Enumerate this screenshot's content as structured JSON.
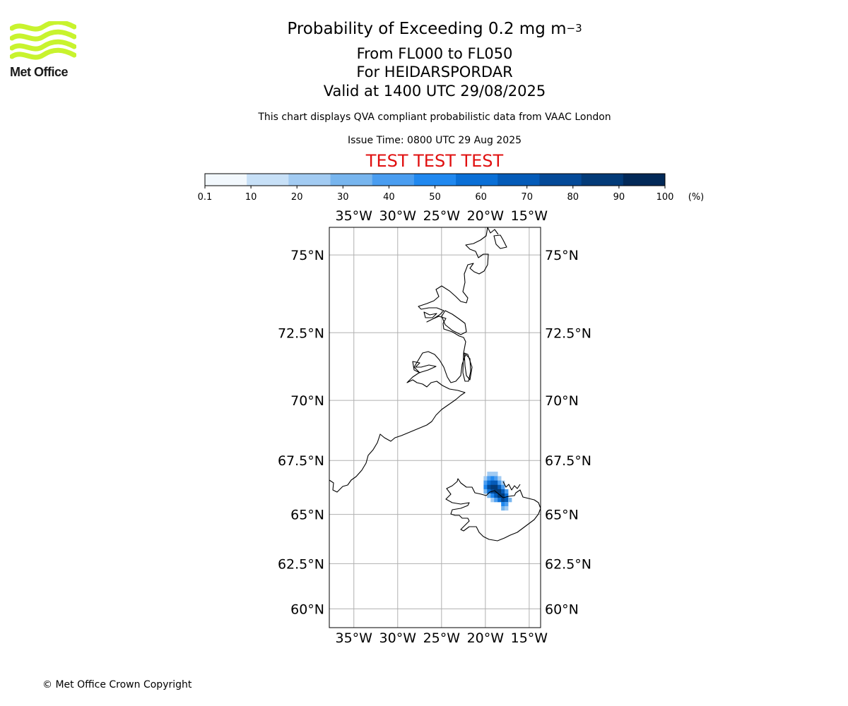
{
  "logo": {
    "text": "Met Office",
    "color": "#c8f32e",
    "text_color": "#1a1a1a"
  },
  "header": {
    "title_main": "Probability of Exceeding 0.2 mg m",
    "title_sup": "−3",
    "flight_levels": "From FL000 to FL050",
    "location": "For HEIDARSPORDAR",
    "valid": "Valid at 1400 UTC 29/08/2025",
    "note": "This chart displays QVA compliant probabilistic data from VAAC London",
    "issue": "Issue Time: 0800 UTC 29 Aug 2025",
    "test_banner": "TEST TEST TEST",
    "test_color": "#e01010"
  },
  "colorbar": {
    "ticks": [
      "0.1",
      "10",
      "20",
      "30",
      "40",
      "50",
      "60",
      "70",
      "80",
      "90",
      "100"
    ],
    "unit": "(%)",
    "colors": [
      "#f2f8fd",
      "#c7e0f7",
      "#a2cbf2",
      "#77b5ee",
      "#4a9df0",
      "#2088ef",
      "#0a6fd6",
      "#045bb8",
      "#044a98",
      "#033b78",
      "#022958"
    ]
  },
  "map": {
    "lon_labels": [
      "35°W",
      "30°W",
      "25°W",
      "20°W",
      "15°W"
    ],
    "lat_labels": [
      "75°N",
      "72.5°N",
      "70°N",
      "67.5°N",
      "65°N",
      "62.5°N",
      "60°N"
    ],
    "lon_values": [
      -35,
      -30,
      -25,
      -20,
      -15
    ],
    "lat_values": [
      75,
      72.5,
      70,
      67.5,
      65,
      62.5,
      60
    ],
    "grid_color": "#b0b0b0",
    "volcano": "HEIDARSPORDAR",
    "plume_cells": [
      {
        "lon": -19.6,
        "lat": 66.9,
        "p": 20
      },
      {
        "lon": -19.2,
        "lat": 66.9,
        "p": 20
      },
      {
        "lon": -18.8,
        "lat": 66.9,
        "p": 20
      },
      {
        "lon": -20.0,
        "lat": 66.7,
        "p": 20
      },
      {
        "lon": -19.6,
        "lat": 66.7,
        "p": 40
      },
      {
        "lon": -19.2,
        "lat": 66.7,
        "p": 50
      },
      {
        "lon": -18.8,
        "lat": 66.7,
        "p": 40
      },
      {
        "lon": -18.4,
        "lat": 66.7,
        "p": 20
      },
      {
        "lon": -20.0,
        "lat": 66.5,
        "p": 40
      },
      {
        "lon": -19.6,
        "lat": 66.5,
        "p": 60
      },
      {
        "lon": -19.2,
        "lat": 66.5,
        "p": 70
      },
      {
        "lon": -18.8,
        "lat": 66.5,
        "p": 70
      },
      {
        "lon": -18.4,
        "lat": 66.5,
        "p": 40
      },
      {
        "lon": -18.0,
        "lat": 66.5,
        "p": 20
      },
      {
        "lon": -20.0,
        "lat": 66.3,
        "p": 50
      },
      {
        "lon": -19.6,
        "lat": 66.3,
        "p": 80
      },
      {
        "lon": -19.2,
        "lat": 66.3,
        "p": 90
      },
      {
        "lon": -18.8,
        "lat": 66.3,
        "p": 90
      },
      {
        "lon": -18.4,
        "lat": 66.3,
        "p": 70
      },
      {
        "lon": -18.0,
        "lat": 66.3,
        "p": 40
      },
      {
        "lon": -20.0,
        "lat": 66.1,
        "p": 30
      },
      {
        "lon": -19.6,
        "lat": 66.1,
        "p": 60
      },
      {
        "lon": -19.2,
        "lat": 66.1,
        "p": 80
      },
      {
        "lon": -18.8,
        "lat": 66.1,
        "p": 90
      },
      {
        "lon": -18.4,
        "lat": 66.1,
        "p": 90
      },
      {
        "lon": -18.0,
        "lat": 66.1,
        "p": 70
      },
      {
        "lon": -17.6,
        "lat": 66.1,
        "p": 40
      },
      {
        "lon": -19.6,
        "lat": 65.9,
        "p": 30
      },
      {
        "lon": -19.2,
        "lat": 65.9,
        "p": 50
      },
      {
        "lon": -18.8,
        "lat": 65.9,
        "p": 70
      },
      {
        "lon": -18.4,
        "lat": 65.9,
        "p": 90
      },
      {
        "lon": -18.0,
        "lat": 65.9,
        "p": 90
      },
      {
        "lon": -17.6,
        "lat": 65.9,
        "p": 60
      },
      {
        "lon": -19.2,
        "lat": 65.7,
        "p": 20
      },
      {
        "lon": -18.8,
        "lat": 65.7,
        "p": 40
      },
      {
        "lon": -18.4,
        "lat": 65.7,
        "p": 60
      },
      {
        "lon": -18.0,
        "lat": 65.7,
        "p": 80
      },
      {
        "lon": -17.6,
        "lat": 65.7,
        "p": 70
      },
      {
        "lon": -17.2,
        "lat": 65.7,
        "p": 30
      },
      {
        "lon": -18.0,
        "lat": 65.5,
        "p": 50
      },
      {
        "lon": -17.6,
        "lat": 65.5,
        "p": 40
      },
      {
        "lon": -18.0,
        "lat": 65.3,
        "p": 30
      },
      {
        "lon": -17.6,
        "lat": 65.3,
        "p": 20
      }
    ]
  },
  "footer": {
    "copyright": "© Met Office Crown Copyright"
  }
}
